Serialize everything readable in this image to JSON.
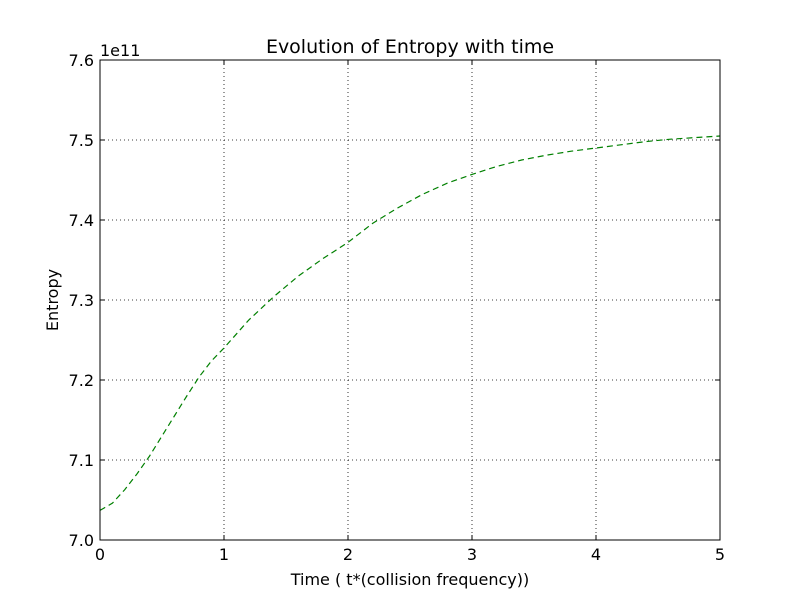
{
  "chart_data": {
    "type": "line",
    "title": "Evolution of Entropy with time",
    "xlabel": "Time ( t*(collision frequency))",
    "ylabel": "Entropy",
    "y_offset_label": "1e11",
    "xlim": [
      0,
      5
    ],
    "ylim": [
      7.0,
      7.6
    ],
    "x_ticks": [
      0,
      1,
      2,
      3,
      4,
      5
    ],
    "x_tick_labels": [
      "0",
      "1",
      "2",
      "3",
      "4",
      "5"
    ],
    "y_ticks": [
      7.0,
      7.1,
      7.2,
      7.3,
      7.4,
      7.5,
      7.6
    ],
    "y_tick_labels": [
      "7.0",
      "7.1",
      "7.2",
      "7.3",
      "7.4",
      "7.5",
      "7.6"
    ],
    "grid": true,
    "legend": "none",
    "series": [
      {
        "color": "#008000",
        "linestyle": "dashed",
        "x": [
          0,
          0.1,
          0.2,
          0.3,
          0.4,
          0.5,
          0.6,
          0.7,
          0.8,
          0.9,
          1.0,
          1.2,
          1.4,
          1.6,
          1.8,
          2.0,
          2.2,
          2.4,
          2.6,
          2.8,
          3.0,
          3.2,
          3.4,
          3.6,
          3.8,
          4.0,
          4.2,
          4.4,
          4.6,
          4.8,
          5.0
        ],
        "y": [
          7.037,
          7.046,
          7.063,
          7.083,
          7.105,
          7.13,
          7.155,
          7.18,
          7.204,
          7.224,
          7.24,
          7.275,
          7.304,
          7.33,
          7.352,
          7.372,
          7.396,
          7.415,
          7.432,
          7.446,
          7.457,
          7.467,
          7.475,
          7.481,
          7.486,
          7.49,
          7.494,
          7.498,
          7.501,
          7.503,
          7.505
        ]
      }
    ]
  }
}
